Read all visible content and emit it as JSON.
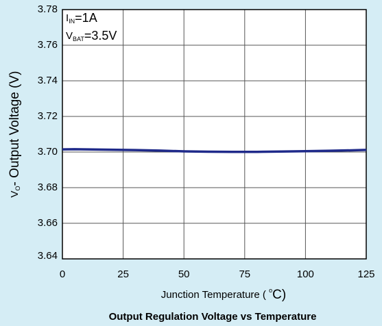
{
  "chart_data": {
    "type": "line",
    "title": "Output Regulation Voltage vs Temperature",
    "xlabel": {
      "parts": [
        "Junction Temperature ( ",
        "o",
        "C)"
      ]
    },
    "ylabel": {
      "parts": [
        "V",
        "O",
        "- Output Voltage  (V)"
      ]
    },
    "annotations": [
      {
        "parts": [
          "I",
          "IN",
          "=1A"
        ]
      },
      {
        "parts": [
          "V",
          "BAT",
          "=3.5V"
        ]
      }
    ],
    "x": [
      0,
      5,
      10,
      20,
      30,
      40,
      50,
      60,
      70,
      80,
      90,
      100,
      110,
      120,
      125
    ],
    "series": [
      {
        "name": "VO",
        "color": "#1f2a8a",
        "values": [
          3.7015,
          3.7016,
          3.7015,
          3.7013,
          3.7011,
          3.7008,
          3.7004,
          3.7002,
          3.7001,
          3.7001,
          3.7003,
          3.7005,
          3.7007,
          3.701,
          3.7012
        ]
      }
    ],
    "xlim": [
      0,
      125
    ],
    "xticks": [
      0,
      25,
      50,
      75,
      100,
      125
    ],
    "ylim": [
      3.64,
      3.78
    ],
    "yticks": [
      3.64,
      3.66,
      3.68,
      {
        "value": 3.7,
        "label": "3.70"
      },
      3.72,
      3.74,
      3.76,
      3.78
    ],
    "grid": true
  }
}
